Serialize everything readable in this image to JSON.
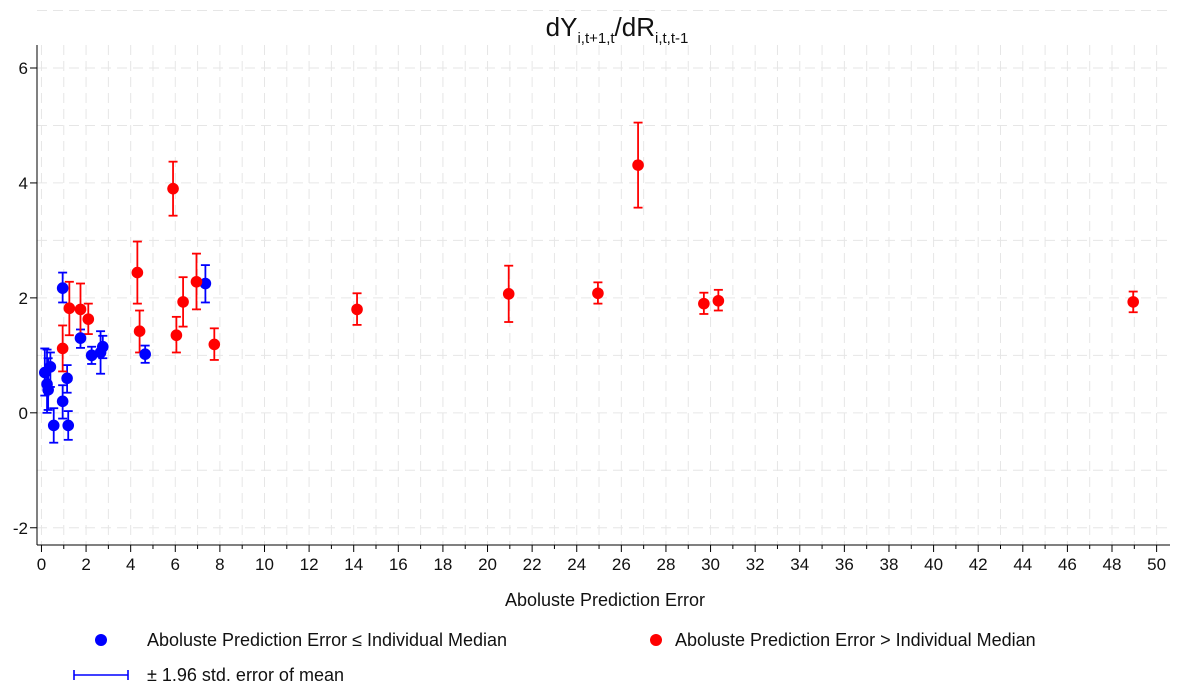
{
  "chart_data": {
    "type": "scatter",
    "title": {
      "base1": "dY",
      "sub1": "i,t+1,t",
      "mid": "/dR",
      "sub2": "i,t,t-1"
    },
    "xlabel": "Aboluste Prediction Error",
    "ylabel": "",
    "xlim": [
      -0.2,
      50.6
    ],
    "ylim": [
      -2.3,
      6.4
    ],
    "xticks": [
      0,
      2,
      4,
      6,
      8,
      10,
      12,
      14,
      16,
      18,
      20,
      22,
      24,
      26,
      28,
      30,
      32,
      34,
      36,
      38,
      40,
      42,
      44,
      46,
      48,
      50
    ],
    "xminor": [
      1,
      3,
      5,
      7,
      9,
      11,
      13,
      15,
      17,
      19,
      21,
      23,
      25,
      27,
      29,
      31,
      33,
      35,
      37,
      39,
      41,
      43,
      45,
      47,
      49
    ],
    "yticks": [
      -2,
      0,
      2,
      4,
      6
    ],
    "grid": true,
    "legend_position": "bottom",
    "series": [
      {
        "name": "Aboluste Prediction Error ≤ Individual Median",
        "color": "#0000ff",
        "points": [
          {
            "x": 0.15,
            "y": 0.7,
            "lo": 0.3,
            "hi": 1.12
          },
          {
            "x": 0.25,
            "y": 0.5,
            "lo": 0.0,
            "hi": 1.1
          },
          {
            "x": 0.3,
            "y": 0.4,
            "lo": 0.05,
            "hi": 0.95
          },
          {
            "x": 0.4,
            "y": 0.8,
            "lo": 0.45,
            "hi": 1.05
          },
          {
            "x": 0.55,
            "y": -0.22,
            "lo": -0.52,
            "hi": 0.08
          },
          {
            "x": 0.95,
            "y": 2.17,
            "lo": 1.92,
            "hi": 2.44
          },
          {
            "x": 0.95,
            "y": 0.2,
            "lo": -0.1,
            "hi": 0.48
          },
          {
            "x": 1.15,
            "y": 0.6,
            "lo": 0.35,
            "hi": 0.83
          },
          {
            "x": 1.2,
            "y": -0.22,
            "lo": -0.47,
            "hi": 0.03
          },
          {
            "x": 1.75,
            "y": 1.3,
            "lo": 1.13,
            "hi": 1.45
          },
          {
            "x": 2.25,
            "y": 1.0,
            "lo": 0.85,
            "hi": 1.15
          },
          {
            "x": 2.65,
            "y": 1.05,
            "lo": 0.68,
            "hi": 1.42
          },
          {
            "x": 2.75,
            "y": 1.15,
            "lo": 0.95,
            "hi": 1.34
          },
          {
            "x": 4.65,
            "y": 1.02,
            "lo": 0.87,
            "hi": 1.17
          },
          {
            "x": 7.35,
            "y": 2.25,
            "lo": 1.92,
            "hi": 2.57
          }
        ]
      },
      {
        "name": "Aboluste Prediction Error > Individual Median",
        "color": "#ff0000",
        "points": [
          {
            "x": 0.95,
            "y": 1.12,
            "lo": 0.72,
            "hi": 1.52
          },
          {
            "x": 1.25,
            "y": 1.82,
            "lo": 1.35,
            "hi": 2.28
          },
          {
            "x": 1.75,
            "y": 1.8,
            "lo": 1.35,
            "hi": 2.25
          },
          {
            "x": 2.1,
            "y": 1.63,
            "lo": 1.37,
            "hi": 1.9
          },
          {
            "x": 4.3,
            "y": 2.44,
            "lo": 1.9,
            "hi": 2.98
          },
          {
            "x": 4.4,
            "y": 1.42,
            "lo": 1.05,
            "hi": 1.78
          },
          {
            "x": 5.9,
            "y": 3.9,
            "lo": 3.43,
            "hi": 4.37
          },
          {
            "x": 6.05,
            "y": 1.35,
            "lo": 1.05,
            "hi": 1.67
          },
          {
            "x": 6.35,
            "y": 1.93,
            "lo": 1.5,
            "hi": 2.36
          },
          {
            "x": 6.95,
            "y": 2.28,
            "lo": 1.8,
            "hi": 2.77
          },
          {
            "x": 7.75,
            "y": 1.19,
            "lo": 0.92,
            "hi": 1.47
          },
          {
            "x": 14.15,
            "y": 1.8,
            "lo": 1.53,
            "hi": 2.08
          },
          {
            "x": 20.95,
            "y": 2.07,
            "lo": 1.58,
            "hi": 2.56
          },
          {
            "x": 24.95,
            "y": 2.08,
            "lo": 1.9,
            "hi": 2.27
          },
          {
            "x": 26.75,
            "y": 4.31,
            "lo": 3.57,
            "hi": 5.05
          },
          {
            "x": 29.7,
            "y": 1.9,
            "lo": 1.72,
            "hi": 2.09
          },
          {
            "x": 30.35,
            "y": 1.95,
            "lo": 1.78,
            "hi": 2.14
          },
          {
            "x": 48.95,
            "y": 1.93,
            "lo": 1.75,
            "hi": 2.11
          }
        ]
      }
    ],
    "errorbar_legend": "± 1.96 std. error of mean"
  }
}
